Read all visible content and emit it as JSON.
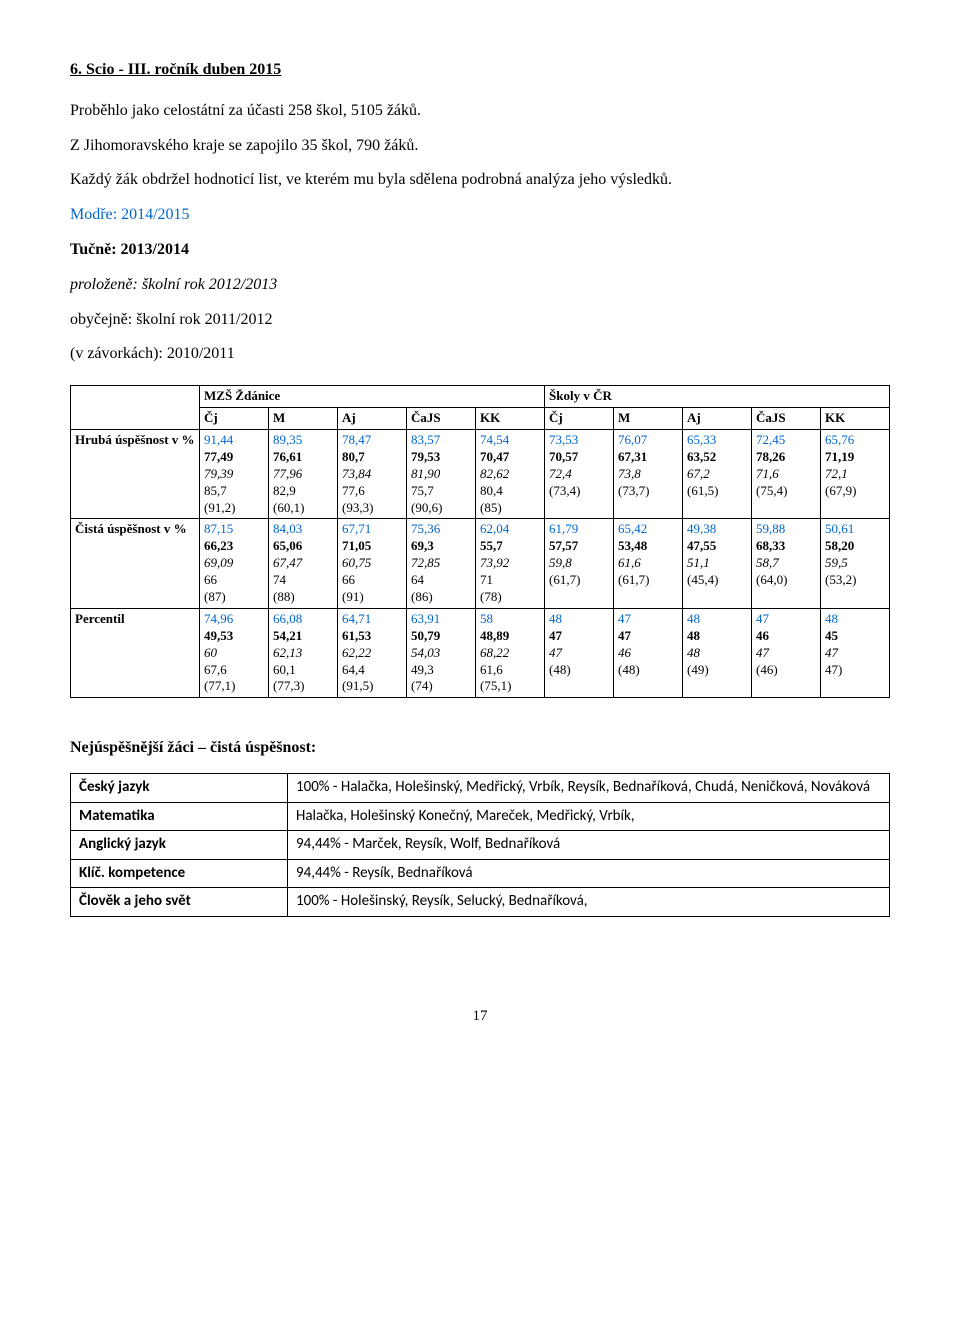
{
  "heading": "6. Scio - III. ročník duben 2015",
  "paragraphs": {
    "p1": "Proběhlo jako celostátní za účasti 258 škol,  5105 žáků.",
    "p2": "Z Jihomoravského kraje se zapojilo 35 škol, 790 žáků.",
    "p3": "Každý žák obdržel hodnoticí list, ve kterém mu byla sdělena podrobná analýza jeho výsledků.",
    "p_blue": "Modře: 2014/2015",
    "p_bold": "Tučně: 2013/2014",
    "p_italic": "proloženě:  školní rok 2012/2013",
    "p_normal": "obyčejně: školní rok  2011/2012",
    "p_brackets": "(v závorkách): 2010/2011"
  },
  "table": {
    "group_headers": [
      "MZŠ Ždánice",
      "Školy v ČR"
    ],
    "column_headers_left": [
      "Čj",
      "M",
      "Aj",
      "ČaJS",
      "KK"
    ],
    "column_headers_right": [
      "Čj",
      "M",
      "Aj",
      "ČaJS",
      "KK"
    ],
    "rows": [
      {
        "label": "Hrubá úspěšnost v %",
        "cells": [
          [
            "91,44",
            "77,49",
            "79,39",
            "85,7",
            "(91,2)"
          ],
          [
            "89,35",
            "76,61",
            "77,96",
            "82,9",
            "(60,1)"
          ],
          [
            "78,47",
            "80,7",
            "73,84",
            "77,6",
            "(93,3)"
          ],
          [
            "83,57",
            "79,53",
            "81,90",
            "75,7",
            "(90,6)"
          ],
          [
            "74,54",
            "70,47",
            "82,62",
            "80,4",
            "(85)"
          ],
          [
            "73,53",
            "70,57",
            "72,4",
            "(73,4)"
          ],
          [
            "76,07",
            "67,31",
            "73,8",
            "(73,7)"
          ],
          [
            "65,33",
            "63,52",
            "67,2",
            "(61,5)"
          ],
          [
            "72,45",
            "78,26",
            "71,6",
            "(75,4)"
          ],
          [
            "65,76",
            "71,19",
            "72,1",
            "(67,9)"
          ]
        ]
      },
      {
        "label": "Čistá úspěšnost v %",
        "cells": [
          [
            "87,15",
            "66,23",
            "69,09",
            "66",
            "(87)"
          ],
          [
            "84,03",
            "65,06",
            "67,47",
            "74",
            "(88)"
          ],
          [
            "67,71",
            "71,05",
            "60,75",
            "66",
            "(91)"
          ],
          [
            "75,36",
            "69,3",
            "72,85",
            "64",
            "(86)"
          ],
          [
            "62,04",
            "55,7",
            "73,92",
            "71",
            "(78)"
          ],
          [
            "61,79",
            "57,57",
            "59,8",
            "(61,7)"
          ],
          [
            "65,42",
            "53,48",
            "61,6",
            "(61,7)"
          ],
          [
            "49,38",
            "47,55",
            "51,1",
            "(45,4)"
          ],
          [
            "59,88",
            "68,33",
            "58,7",
            "(64,0)"
          ],
          [
            "50,61",
            "58,20",
            "59,5",
            "(53,2)"
          ]
        ]
      },
      {
        "label": "Percentil",
        "cells": [
          [
            "74,96",
            "49,53",
            "60",
            "67,6",
            "(77,1)"
          ],
          [
            "66,08",
            "54,21",
            "62,13",
            "60,1",
            "(77,3)"
          ],
          [
            "64,71",
            "61,53",
            "62,22",
            "64,4",
            "(91,5)"
          ],
          [
            "63,91",
            "50,79",
            "54,03",
            "49,3",
            "(74)"
          ],
          [
            "58",
            "48,89",
            "68,22",
            "61,6",
            "(75,1)"
          ],
          [
            "48",
            "47",
            "47",
            "(48)"
          ],
          [
            "47",
            "47",
            "46",
            "(48)"
          ],
          [
            "48",
            "48",
            "48",
            "(49)"
          ],
          [
            "47",
            "46",
            "47",
            "(46)"
          ],
          [
            "48",
            "45",
            "47",
            "47)"
          ]
        ]
      }
    ]
  },
  "best_section_heading": "Nejúspěšnější žáci – čistá úspěšnost:",
  "best_table": [
    {
      "label": "Český jazyk",
      "value": "100% - Halačka, Holešinský, Medřický, Vrbík, Reysík, Bednaříková, Chudá, Neničková, Nováková"
    },
    {
      "label": "Matematika",
      "value": "Halačka, Holešinský Konečný, Mareček, Medřický, Vrbík,"
    },
    {
      "label": "Anglický jazyk",
      "value": "94,44% - Marček, Reysík, Wolf, Bednaříková"
    },
    {
      "label": "Klíč. kompetence",
      "value": "94,44% - Reysík, Bednaříková"
    },
    {
      "label": "Člověk a jeho svět",
      "value": "100% - Holešinský, Reysík, Selucký, Bednaříková,"
    }
  ],
  "page_number": "17"
}
